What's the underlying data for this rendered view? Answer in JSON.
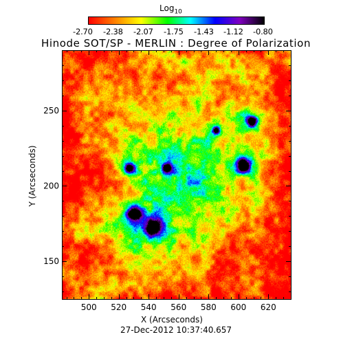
{
  "chart_data": {
    "type": "heatmap",
    "title": "Hinode SOT/SP - MERLIN : Degree of Polarization",
    "xlabel": "X (Arcseconds)",
    "ylabel": "Y (Arcseconds)",
    "xlim": [
      482,
      635
    ],
    "ylim": [
      125,
      290
    ],
    "x_ticks": [
      500,
      520,
      540,
      560,
      580,
      600,
      620
    ],
    "y_ticks": [
      150,
      200,
      250
    ],
    "colorbar": {
      "label": "Log",
      "label_subscript": "10",
      "ticks": [
        "-2.70",
        "-2.38",
        "-2.07",
        "-1.75",
        "-1.43",
        "-1.12",
        "-0.80"
      ],
      "range": [
        -2.7,
        -0.8
      ],
      "colors": [
        "#ff0000",
        "#ff8000",
        "#ffff00",
        "#00ff00",
        "#00ffff",
        "#0000ff",
        "#8000c0",
        "#000000"
      ]
    },
    "timestamp": "27-Dec-2012 10:37:40.657"
  }
}
